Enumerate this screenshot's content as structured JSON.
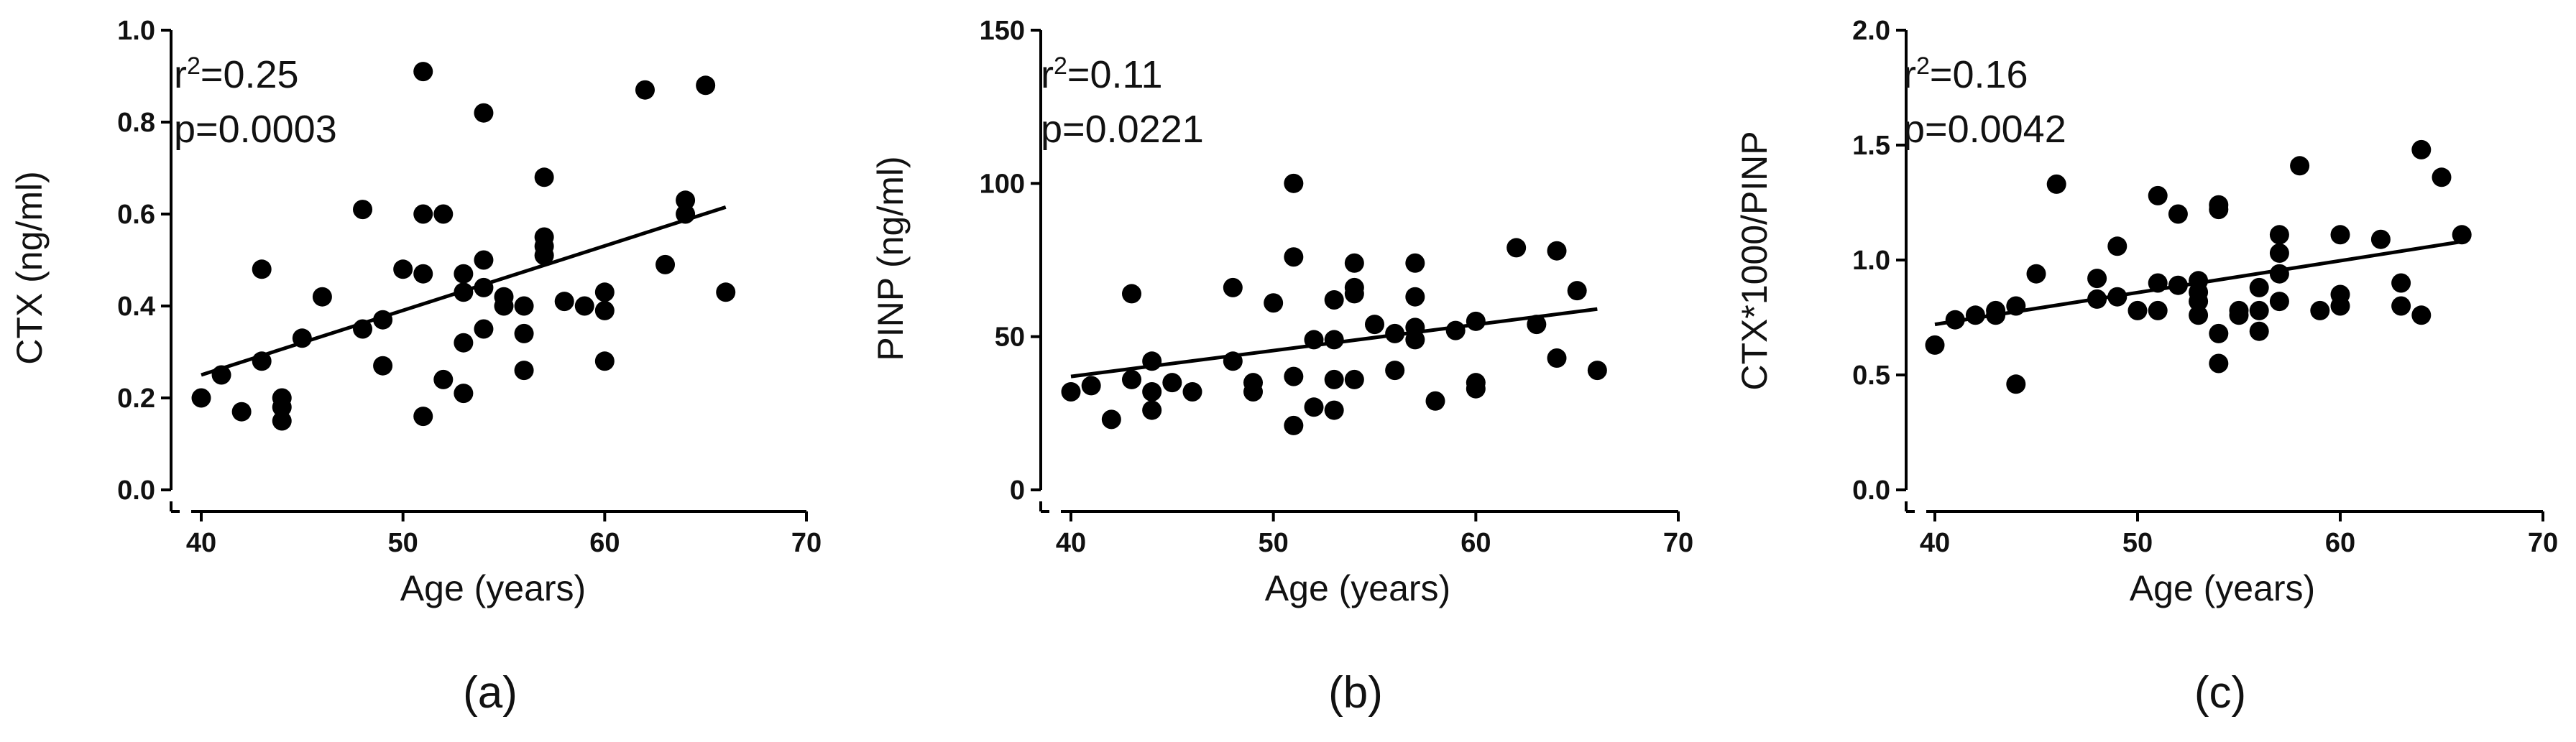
{
  "chart_data": [
    {
      "type": "scatter",
      "panel": "(a)",
      "xlabel": "Age (years)",
      "ylabel": "CTX (ng/ml)",
      "xlim": [
        40,
        70
      ],
      "ylim": [
        0,
        1.0
      ],
      "xticks": [
        40,
        50,
        60,
        70
      ],
      "yticks": [
        0.0,
        0.2,
        0.4,
        0.6,
        0.8,
        1.0
      ],
      "ytick_labels": [
        "0.0",
        "0.2",
        "0.4",
        "0.6",
        "0.8",
        "1.0"
      ],
      "stats": {
        "r2_prefix": "r",
        "r2_sup": "2",
        "r2_value": "=0.25",
        "p": "p=0.0003"
      },
      "trend": {
        "x": [
          40,
          66
        ],
        "y": [
          0.25,
          0.615
        ]
      },
      "points": [
        [
          40,
          0.2
        ],
        [
          41,
          0.25
        ],
        [
          42,
          0.17
        ],
        [
          43,
          0.48
        ],
        [
          43,
          0.28
        ],
        [
          44,
          0.2
        ],
        [
          44,
          0.18
        ],
        [
          44,
          0.15
        ],
        [
          45,
          0.33
        ],
        [
          46,
          0.42
        ],
        [
          48,
          0.61
        ],
        [
          48,
          0.35
        ],
        [
          49,
          0.37
        ],
        [
          49,
          0.27
        ],
        [
          50,
          0.48
        ],
        [
          51,
          0.91
        ],
        [
          51,
          0.6
        ],
        [
          51,
          0.47
        ],
        [
          51,
          0.16
        ],
        [
          52,
          0.6
        ],
        [
          52,
          0.24
        ],
        [
          53,
          0.47
        ],
        [
          53,
          0.43
        ],
        [
          53,
          0.32
        ],
        [
          53,
          0.21
        ],
        [
          54,
          0.82
        ],
        [
          54,
          0.5
        ],
        [
          54,
          0.44
        ],
        [
          54,
          0.35
        ],
        [
          55,
          0.42
        ],
        [
          55,
          0.4
        ],
        [
          56,
          0.4
        ],
        [
          56,
          0.34
        ],
        [
          56,
          0.26
        ],
        [
          57,
          0.68
        ],
        [
          57,
          0.55
        ],
        [
          57,
          0.53
        ],
        [
          57,
          0.51
        ],
        [
          58,
          0.41
        ],
        [
          59,
          0.4
        ],
        [
          60,
          0.43
        ],
        [
          60,
          0.39
        ],
        [
          60,
          0.28
        ],
        [
          62,
          0.87
        ],
        [
          63,
          0.49
        ],
        [
          64,
          0.63
        ],
        [
          64,
          0.6
        ],
        [
          65,
          0.88
        ],
        [
          66,
          0.43
        ]
      ]
    },
    {
      "type": "scatter",
      "panel": "(b)",
      "xlabel": "Age (years)",
      "ylabel": "PINP (ng/ml)",
      "xlim": [
        40,
        70
      ],
      "ylim": [
        0,
        150
      ],
      "xticks": [
        40,
        50,
        60,
        70
      ],
      "yticks": [
        0,
        50,
        100,
        150
      ],
      "ytick_labels": [
        "0",
        "50",
        "100",
        "150"
      ],
      "stats": {
        "r2_prefix": "r",
        "r2_sup": "2",
        "r2_value": "=0.11",
        "p": "p=0.0221"
      },
      "trend": {
        "x": [
          40,
          66
        ],
        "y": [
          37,
          59
        ]
      },
      "points": [
        [
          40,
          32
        ],
        [
          41,
          34
        ],
        [
          42,
          23
        ],
        [
          43,
          64
        ],
        [
          43,
          36
        ],
        [
          44,
          42
        ],
        [
          44,
          32
        ],
        [
          44,
          26
        ],
        [
          45,
          35
        ],
        [
          46,
          32
        ],
        [
          48,
          66
        ],
        [
          48,
          42
        ],
        [
          49,
          35
        ],
        [
          49,
          32
        ],
        [
          50,
          61
        ],
        [
          51,
          100
        ],
        [
          51,
          76
        ],
        [
          51,
          37
        ],
        [
          51,
          21
        ],
        [
          52,
          49
        ],
        [
          52,
          27
        ],
        [
          53,
          62
        ],
        [
          53,
          49
        ],
        [
          53,
          36
        ],
        [
          53,
          26
        ],
        [
          54,
          74
        ],
        [
          54,
          66
        ],
        [
          54,
          64
        ],
        [
          54,
          36
        ],
        [
          55,
          54
        ],
        [
          56,
          51
        ],
        [
          56,
          39
        ],
        [
          57,
          74
        ],
        [
          57,
          63
        ],
        [
          57,
          53
        ],
        [
          57,
          49
        ],
        [
          58,
          29
        ],
        [
          59,
          52
        ],
        [
          60,
          55
        ],
        [
          60,
          35
        ],
        [
          60,
          33
        ],
        [
          62,
          79
        ],
        [
          63,
          54
        ],
        [
          64,
          78
        ],
        [
          64,
          43
        ],
        [
          65,
          65
        ],
        [
          66,
          39
        ]
      ]
    },
    {
      "type": "scatter",
      "panel": "(c)",
      "xlabel": "Age (years)",
      "ylabel": "CTX*1000/PINP",
      "xlim": [
        40,
        70
      ],
      "ylim": [
        0,
        2.0
      ],
      "xticks": [
        40,
        50,
        60,
        70
      ],
      "yticks": [
        0.0,
        0.5,
        1.0,
        1.5,
        2.0
      ],
      "ytick_labels": [
        "0.0",
        "0.5",
        "1.0",
        "1.5",
        "2.0"
      ],
      "stats": {
        "r2_prefix": "r",
        "r2_sup": "2",
        "r2_value": "=0.16",
        "p": "p=0.0042"
      },
      "trend": {
        "x": [
          40,
          66
        ],
        "y": [
          0.72,
          1.08
        ]
      },
      "points": [
        [
          40,
          0.63
        ],
        [
          41,
          0.74
        ],
        [
          42,
          0.76
        ],
        [
          43,
          0.76
        ],
        [
          43,
          0.78
        ],
        [
          44,
          0.8
        ],
        [
          44,
          0.46
        ],
        [
          45,
          0.94
        ],
        [
          46,
          1.33
        ],
        [
          48,
          0.92
        ],
        [
          48,
          0.83
        ],
        [
          49,
          1.06
        ],
        [
          49,
          0.84
        ],
        [
          50,
          0.78
        ],
        [
          51,
          1.28
        ],
        [
          51,
          0.9
        ],
        [
          51,
          0.78
        ],
        [
          52,
          1.2
        ],
        [
          52,
          0.89
        ],
        [
          53,
          0.91
        ],
        [
          53,
          0.86
        ],
        [
          53,
          0.82
        ],
        [
          53,
          0.76
        ],
        [
          54,
          1.24
        ],
        [
          54,
          1.22
        ],
        [
          54,
          0.68
        ],
        [
          54,
          0.55
        ],
        [
          55,
          0.78
        ],
        [
          55,
          0.76
        ],
        [
          56,
          0.88
        ],
        [
          56,
          0.78
        ],
        [
          56,
          0.69
        ],
        [
          57,
          1.11
        ],
        [
          57,
          1.03
        ],
        [
          57,
          0.94
        ],
        [
          57,
          0.82
        ],
        [
          58,
          1.41
        ],
        [
          59,
          0.78
        ],
        [
          60,
          1.11
        ],
        [
          60,
          0.85
        ],
        [
          60,
          0.8
        ],
        [
          62,
          1.09
        ],
        [
          63,
          0.9
        ],
        [
          63,
          0.8
        ],
        [
          64,
          1.48
        ],
        [
          64,
          0.76
        ],
        [
          65,
          1.36
        ],
        [
          66,
          1.11
        ]
      ]
    }
  ]
}
